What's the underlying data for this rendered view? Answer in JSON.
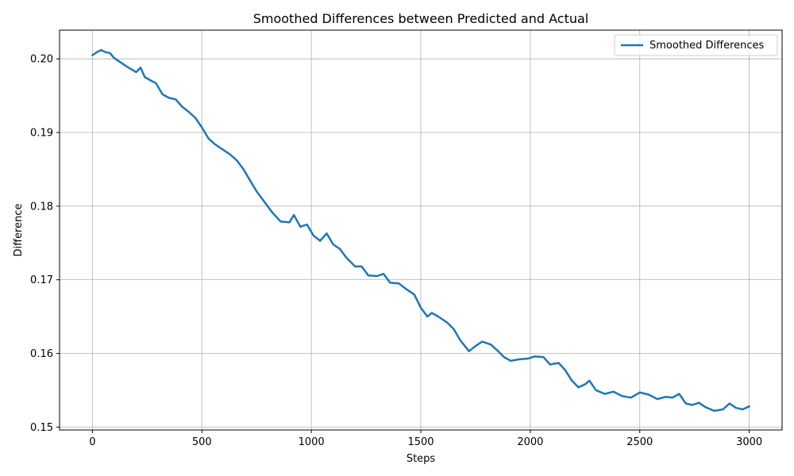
{
  "chart_data": {
    "type": "line",
    "title": "Smoothed Differences between Predicted and Actual",
    "xlabel": "Steps",
    "ylabel": "Difference",
    "xlim": [
      -150,
      3150
    ],
    "ylim": [
      0.1496,
      0.2039
    ],
    "xticks": [
      0,
      500,
      1000,
      1500,
      2000,
      2500,
      3000
    ],
    "yticks": [
      0.15,
      0.16,
      0.17,
      0.18,
      0.19,
      0.2
    ],
    "xtick_labels": [
      "0",
      "500",
      "1000",
      "1500",
      "2000",
      "2500",
      "3000"
    ],
    "ytick_labels": [
      "0.15",
      "0.16",
      "0.17",
      "0.18",
      "0.19",
      "0.20"
    ],
    "grid": true,
    "legend_position": "top-right",
    "colors": {
      "series": "#1f77b4",
      "grid": "#b0b0b0",
      "axes": "#000000"
    },
    "series": [
      {
        "name": "Smoothed Differences",
        "x": [
          0,
          20,
          40,
          60,
          80,
          100,
          130,
          160,
          200,
          220,
          240,
          270,
          290,
          320,
          350,
          380,
          410,
          440,
          470,
          500,
          530,
          560,
          600,
          630,
          660,
          690,
          720,
          750,
          780,
          820,
          860,
          900,
          920,
          950,
          980,
          1010,
          1040,
          1070,
          1100,
          1130,
          1160,
          1200,
          1230,
          1260,
          1300,
          1330,
          1360,
          1400,
          1430,
          1470,
          1500,
          1530,
          1550,
          1580,
          1620,
          1650,
          1680,
          1720,
          1750,
          1780,
          1820,
          1850,
          1880,
          1910,
          1950,
          1990,
          2020,
          2060,
          2090,
          2130,
          2160,
          2190,
          2220,
          2250,
          2270,
          2300,
          2340,
          2380,
          2420,
          2460,
          2500,
          2540,
          2580,
          2620,
          2650,
          2680,
          2710,
          2740,
          2770,
          2800,
          2840,
          2880,
          2910,
          2940,
          2970,
          3000
        ],
        "values": [
          0.2005,
          0.2009,
          0.2012,
          0.2009,
          0.2008,
          0.2001,
          0.1995,
          0.1989,
          0.1982,
          0.1988,
          0.1975,
          0.197,
          0.1967,
          0.1952,
          0.1947,
          0.1945,
          0.1935,
          0.1928,
          0.192,
          0.1907,
          0.1892,
          0.1884,
          0.1876,
          0.187,
          0.1862,
          0.185,
          0.1835,
          0.182,
          0.1808,
          0.1792,
          0.1779,
          0.1778,
          0.1788,
          0.1772,
          0.1775,
          0.176,
          0.1753,
          0.1763,
          0.1748,
          0.1742,
          0.173,
          0.1718,
          0.1718,
          0.1706,
          0.1705,
          0.1708,
          0.1696,
          0.1695,
          0.1688,
          0.168,
          0.1662,
          0.165,
          0.1655,
          0.165,
          0.1642,
          0.1633,
          0.1618,
          0.1603,
          0.161,
          0.1616,
          0.1612,
          0.1604,
          0.1595,
          0.159,
          0.1592,
          0.1593,
          0.1596,
          0.1595,
          0.1585,
          0.1587,
          0.1577,
          0.1563,
          0.1554,
          0.1558,
          0.1563,
          0.155,
          0.1545,
          0.1548,
          0.1542,
          0.154,
          0.1547,
          0.1544,
          0.1538,
          0.1541,
          0.154,
          0.1545,
          0.1532,
          0.153,
          0.1533,
          0.1527,
          0.1522,
          0.1524,
          0.1532,
          0.1526,
          0.1524,
          0.1528
        ]
      }
    ]
  }
}
